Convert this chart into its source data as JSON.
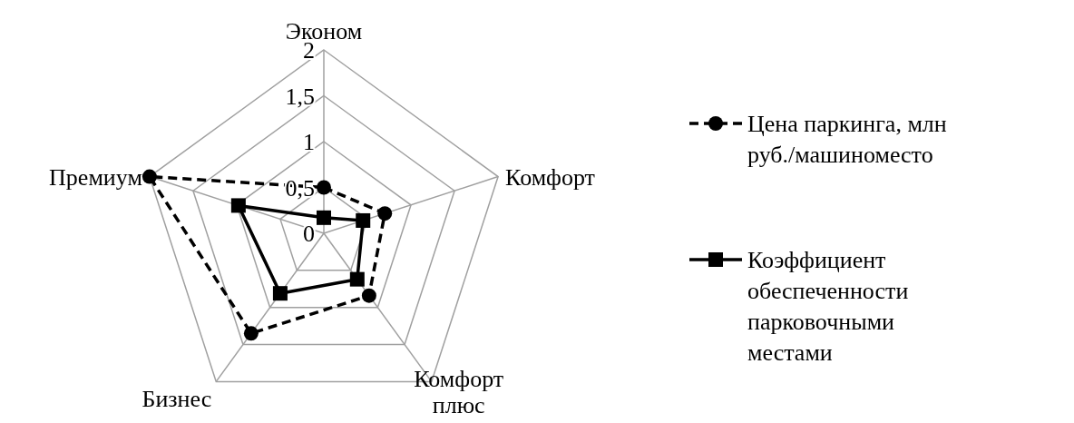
{
  "chart_data": {
    "type": "radar",
    "categories": [
      "Эконом",
      "Комфорт",
      "Комфорт плюс",
      "Бизнес",
      "Премиум"
    ],
    "ylim": [
      0,
      2
    ],
    "yticks": [
      0,
      {
        "value": 0.5,
        "label": "0,5"
      },
      1,
      {
        "value": 1.5,
        "label": "1,5"
      },
      2
    ],
    "grid": true,
    "legend": "right",
    "series": [
      {
        "name": "Цена паркинга, млн руб./машиноместо",
        "color": "#000000",
        "values": [
          0.5,
          0.7,
          0.84,
          1.35,
          2.0
        ],
        "marker": "circle",
        "line_style": "dashed"
      },
      {
        "name": "Коэффициент обеспеченности парковочными местами",
        "color": "#000000",
        "values": [
          0.17,
          0.45,
          0.62,
          0.81,
          0.98
        ],
        "marker": "square",
        "line_style": "solid"
      }
    ]
  }
}
